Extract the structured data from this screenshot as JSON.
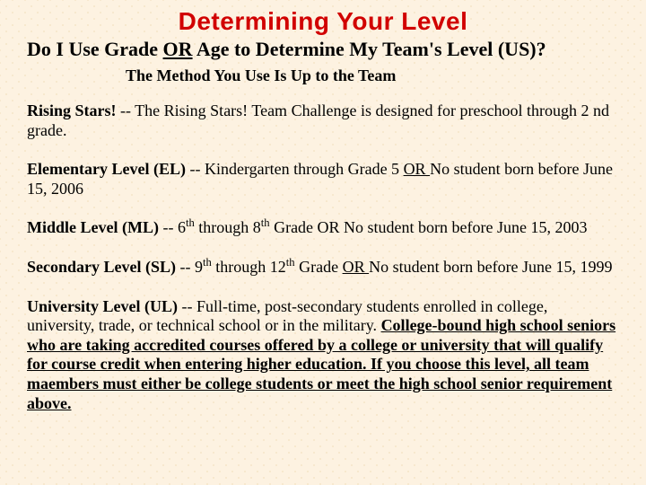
{
  "title": "Determining Your Level",
  "subtitle_pre": "Do I Use Grade ",
  "subtitle_or": "OR",
  "subtitle_post": " Age to Determine My Team's Level (US)?",
  "method_line": "The Method You Use Is Up to the Team",
  "rising": {
    "label": "Rising Stars!",
    "text": " -- The Rising Stars! Team Challenge is designed for preschool through 2 nd grade."
  },
  "el": {
    "label": "Elementary Level (EL)",
    "pre": " -- Kindergarten through  Grade 5 ",
    "or": "OR ",
    "post": "No student born before June 15, 2006"
  },
  "ml": {
    "label": "Middle Level (ML)",
    "pre": " -- 6",
    "sup1": "th",
    "mid1": " through 8",
    "sup2": "th",
    "mid2": " Grade  OR No student born before June 15, 2003"
  },
  "sl": {
    "label": "Secondary Level (SL)",
    "pre": " -- 9",
    "sup1": "th",
    "mid1": " through 12",
    "sup2": "th",
    "mid2": " Grade ",
    "or": "OR ",
    "post": "No student born before June 15, 1999"
  },
  "ul": {
    "label": "University Level (UL)",
    "text1": " -- Full-time, post-secondary students enrolled in college, university, trade, or technical school or in the military. ",
    "underlined": "College-bound high school seniors who are taking accredited courses offered by a college or university that will qualify for course credit when entering higher education.  If you choose this level, all team maembers must either be college students or meet the high school senior requirement above. "
  },
  "colors": {
    "title": "#d10000",
    "body": "#000000",
    "bg": "#fdf2e1"
  },
  "fontsize": {
    "title_pt": 28,
    "subtitle_pt": 22,
    "method_pt": 18,
    "body_pt": 18
  }
}
